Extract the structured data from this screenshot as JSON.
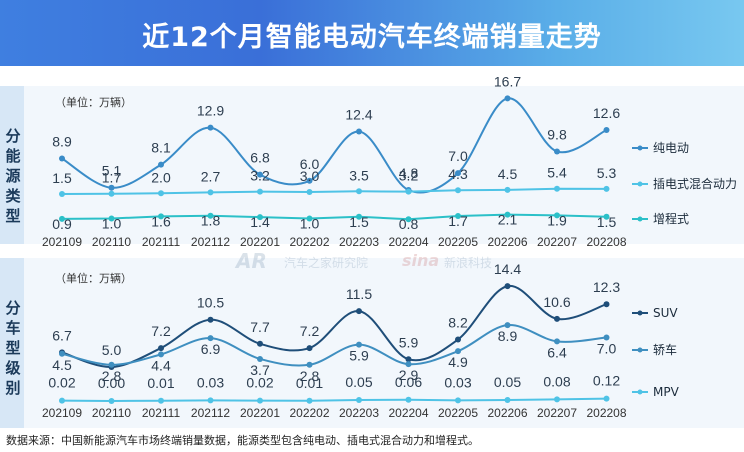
{
  "title": "近12个月智能电动汽车终端销量走势",
  "source": "数据来源：中国新能源汽车市场终端销量数据，能源类型包含纯电动、插电式混合动力和增程式。",
  "watermark": {
    "logo": "AR",
    "text1": "汽车之家研究院",
    "logo2": "sina",
    "text2": "新浪科技"
  },
  "chart_data": [
    {
      "type": "line",
      "side_label": "分能源类型",
      "unit_label": "（单位：万辆）",
      "categories": [
        "202109",
        "202110",
        "202111",
        "202112",
        "202201",
        "202202",
        "202203",
        "202204",
        "202205",
        "202206",
        "202207",
        "202208"
      ],
      "series": [
        {
          "name": "纯电动",
          "color": "#3a8cc8",
          "values": [
            8.9,
            5.1,
            8.1,
            12.9,
            6.8,
            6.0,
            12.4,
            4.8,
            7.0,
            16.7,
            9.8,
            12.6
          ]
        },
        {
          "name": "插电式混合动力",
          "color": "#4fc3e6",
          "values": [
            1.5,
            1.7,
            2.0,
            2.7,
            3.2,
            3.0,
            3.5,
            3.2,
            4.3,
            4.5,
            5.4,
            5.3
          ]
        },
        {
          "name": "增程式",
          "color": "#2bc0c8",
          "values": [
            0.9,
            1.0,
            1.6,
            1.8,
            1.4,
            1.0,
            1.5,
            0.8,
            1.7,
            2.1,
            1.9,
            1.5
          ]
        }
      ],
      "smooth": [
        true,
        false,
        false
      ]
    },
    {
      "type": "line",
      "side_label": "分车型级别",
      "unit_label": "（单位：万辆）",
      "categories": [
        "202109",
        "202110",
        "202111",
        "202112",
        "202201",
        "202202",
        "202203",
        "202204",
        "202205",
        "202206",
        "202207",
        "202208"
      ],
      "series": [
        {
          "name": "SUV",
          "color": "#1f4e79",
          "values": [
            6.7,
            5.0,
            7.2,
            10.5,
            7.7,
            7.2,
            11.5,
            5.9,
            8.2,
            14.4,
            10.6,
            12.3
          ],
          "labels": [
            "6.7",
            "5.0",
            "7.2",
            "10.5",
            "7.7",
            "7.2",
            "11.5",
            "5.9",
            "8.2",
            "14.4",
            "10.6",
            "12.3"
          ]
        },
        {
          "name": "轿车",
          "color": "#3f8fc0",
          "values": [
            4.5,
            2.8,
            4.4,
            6.9,
            3.7,
            2.8,
            5.9,
            2.9,
            4.9,
            8.9,
            6.4,
            7.0
          ],
          "labels": [
            "4.5",
            "2.8",
            "4.4",
            "6.9",
            "3.7",
            "2.8",
            "5.9",
            "2.9",
            "4.9",
            "8.9",
            "6.4",
            "7.0"
          ]
        },
        {
          "name": "MPV",
          "color": "#4fc3e6",
          "values": [
            0.02,
            0.0,
            0.01,
            0.03,
            0.02,
            0.01,
            0.05,
            0.06,
            0.03,
            0.05,
            0.08,
            0.12
          ],
          "labels": [
            "0.02",
            "0.00",
            "0.01",
            "0.03",
            "0.02",
            "0.01",
            "0.05",
            "0.06",
            "0.03",
            "0.05",
            "0.08",
            "0.12"
          ]
        }
      ],
      "smooth": [
        true,
        true,
        false
      ]
    }
  ]
}
